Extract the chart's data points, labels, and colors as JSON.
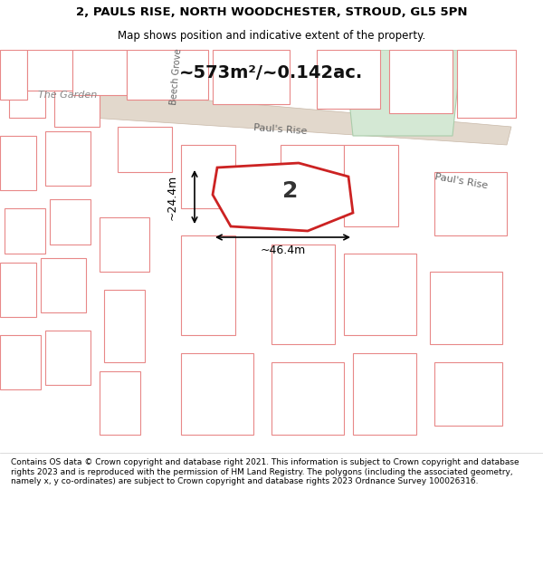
{
  "title_line1": "2, PAULS RISE, NORTH WOODCHESTER, STROUD, GL5 5PN",
  "title_line2": "Map shows position and indicative extent of the property.",
  "footer_text": "Contains OS data © Crown copyright and database right 2021. This information is subject to Crown copyright and database rights 2023 and is reproduced with the permission of HM Land Registry. The polygons (including the associated geometry, namely x, y co-ordinates) are subject to Crown copyright and database rights 2023 Ordnance Survey 100026316.",
  "area_text": "~573m²/~0.142ac.",
  "property_number": "2",
  "dim_width": "~46.4m",
  "dim_height": "~24.4m",
  "bg_color": "#f0eeeb",
  "map_bg": "#f0eeeb",
  "road_color": "#e8e0d4",
  "plot_fill": "#ffffff",
  "plot_edge": "#cc2222",
  "plot_edge_width": 2.0,
  "other_plots_edge": "#e88888",
  "other_plots_fill": "#ffffff",
  "green_area_fill": "#d4e8d4",
  "green_area_edge": "#aaccaa",
  "road_label_pauls_rise": "Paul's Rise",
  "road_label_beech_grove": "Beech Grove",
  "label_garden": "The Garden",
  "title_bg": "#ffffff",
  "footer_bg": "#ffffff"
}
